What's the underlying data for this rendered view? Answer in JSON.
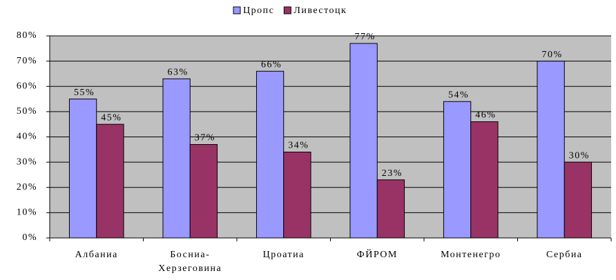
{
  "chart_data": {
    "type": "bar",
    "categories": [
      "Албаниа",
      "Босниа-Херзеговина",
      "Цроатиа",
      "ФЙРОМ",
      "Монтенегро",
      "Сербиа"
    ],
    "series": [
      {
        "name": "Цропс",
        "color": "#9999ff",
        "values": [
          55,
          63,
          66,
          77,
          54,
          70
        ],
        "value_labels": [
          "55%",
          "63%",
          "66%",
          "77%",
          "54%",
          "70%"
        ]
      },
      {
        "name": "Ливестоцк",
        "color": "#993366",
        "values": [
          45,
          37,
          34,
          23,
          46,
          30
        ],
        "value_labels": [
          "45%",
          "37%",
          "34%",
          "23%",
          "46%",
          "30%"
        ]
      }
    ],
    "ylim": [
      0,
      80
    ],
    "yticks": [
      {
        "value": 0,
        "label": "0%"
      },
      {
        "value": 10,
        "label": "10%"
      },
      {
        "value": 20,
        "label": "20%"
      },
      {
        "value": 30,
        "label": "30%"
      },
      {
        "value": 40,
        "label": "40%"
      },
      {
        "value": 50,
        "label": "50%"
      },
      {
        "value": 60,
        "label": "60%"
      },
      {
        "value": 70,
        "label": "70%"
      },
      {
        "value": 80,
        "label": "80%"
      }
    ],
    "grid": true,
    "legend": "top"
  }
}
